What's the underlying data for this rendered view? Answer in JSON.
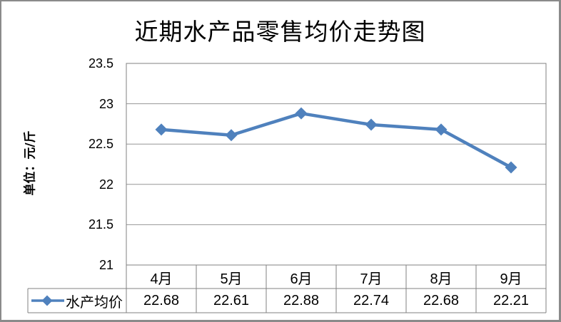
{
  "chart_data": {
    "type": "line",
    "title": "近期水产品零售均价走势图",
    "ylabel": "单位：元/斤",
    "xlabel": "",
    "categories": [
      "4月",
      "5月",
      "6月",
      "7月",
      "8月",
      "9月"
    ],
    "series": [
      {
        "name": "水产均价",
        "values": [
          22.68,
          22.61,
          22.88,
          22.74,
          22.68,
          22.21
        ]
      }
    ],
    "display_values": [
      "22.68",
      "22.61",
      "22.88",
      "22.74",
      "22.68",
      "22.21"
    ],
    "ylim": [
      21,
      23.5
    ],
    "ytick_step": 0.5,
    "ytick_labels": [
      "23.5",
      "23",
      "22.5",
      "22",
      "21.5",
      "21"
    ],
    "grid": true,
    "marker": "diamond",
    "legend_position": "data-table-left",
    "data_table": true
  },
  "legend": {
    "series_label": "水产均价"
  },
  "colors": {
    "series_line": "#4F81BD",
    "marker_fill": "#4F81BD",
    "gridline": "#969696",
    "plot_border": "#808080",
    "table_border": "#808080",
    "frame_border": "#8A8A8A",
    "background": "#FFFFFF",
    "text": "#000000"
  }
}
